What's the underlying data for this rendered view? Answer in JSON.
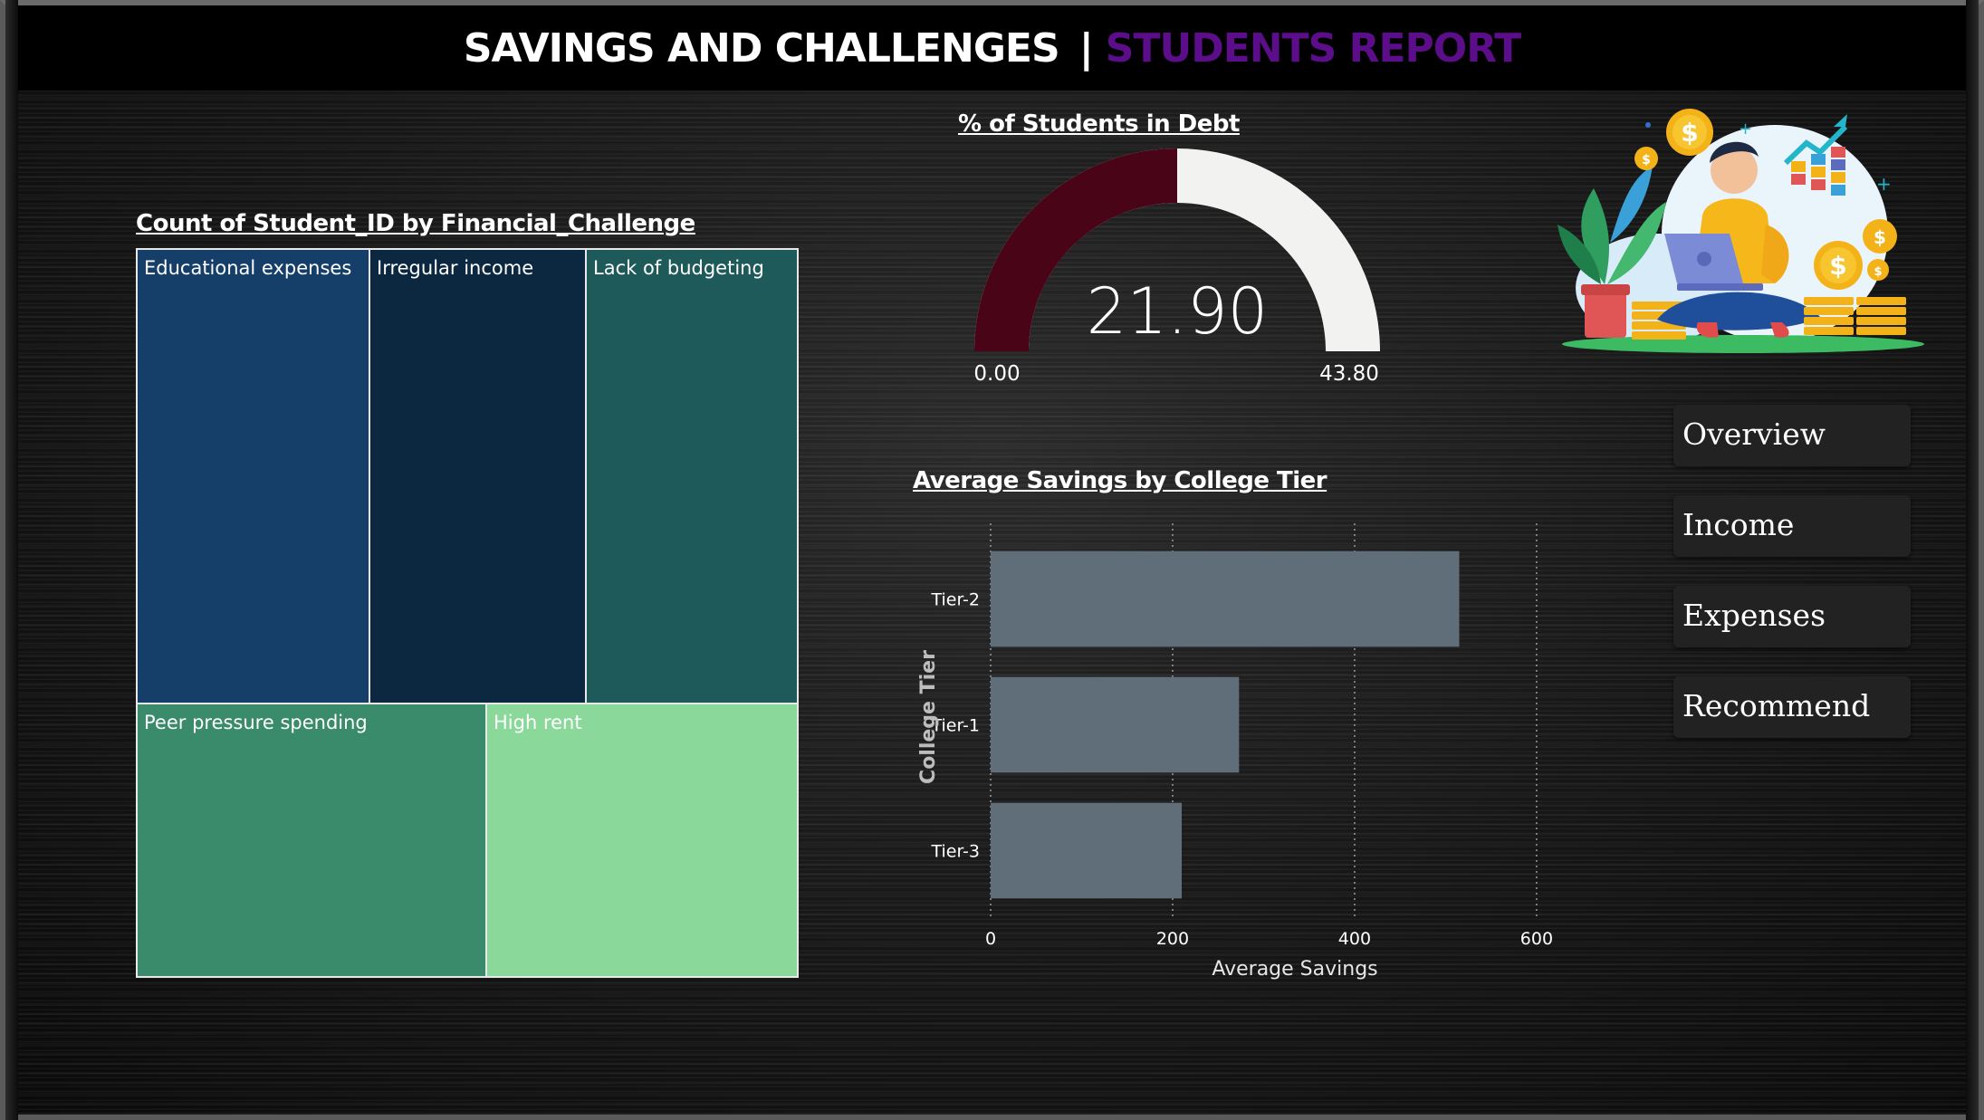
{
  "header": {
    "title_main": "SAVINGS AND CHALLENGES",
    "separator": "|",
    "title_sub": "STUDENTS REPORT"
  },
  "colors": {
    "title_sub": "#5c0e8a",
    "gauge_fill": "#4a0418",
    "gauge_track": "#f2f2f0",
    "bar": "#5f6e79",
    "nav_bg": "#222222"
  },
  "treemap": {
    "title": "Count of Student_ID by Financial_Challenge",
    "tiles": [
      {
        "label": "Educational expenses",
        "color": "#153f69"
      },
      {
        "label": "Irregular income",
        "color": "#0b2840"
      },
      {
        "label": "Lack of budgeting",
        "color": "#1e5a5a"
      },
      {
        "label": "Peer pressure spending",
        "color": "#3a8a6c"
      },
      {
        "label": "High rent",
        "color": "#8ad99a"
      }
    ]
  },
  "gauge": {
    "title": "% of Students in Debt",
    "value": 21.9,
    "value_label": "21.90",
    "min": 0,
    "max": 43.8,
    "min_label": "0.00",
    "max_label": "43.80"
  },
  "chart_data": {
    "type": "bar",
    "orientation": "horizontal",
    "title": "Average Savings by College Tier",
    "categories": [
      "Tier-2",
      "Tier-1",
      "Tier-3"
    ],
    "values": [
      515,
      273,
      210
    ],
    "xlabel": "Average Savings",
    "ylabel": "College Tier",
    "xlim": [
      0,
      600
    ],
    "xticks": [
      0,
      200,
      400,
      600
    ],
    "grid": true
  },
  "nav": {
    "items": [
      "Overview",
      "Income",
      "Expenses",
      "Recommend"
    ]
  },
  "illustration": {
    "icon": "student-laptop-savings-illustration"
  }
}
